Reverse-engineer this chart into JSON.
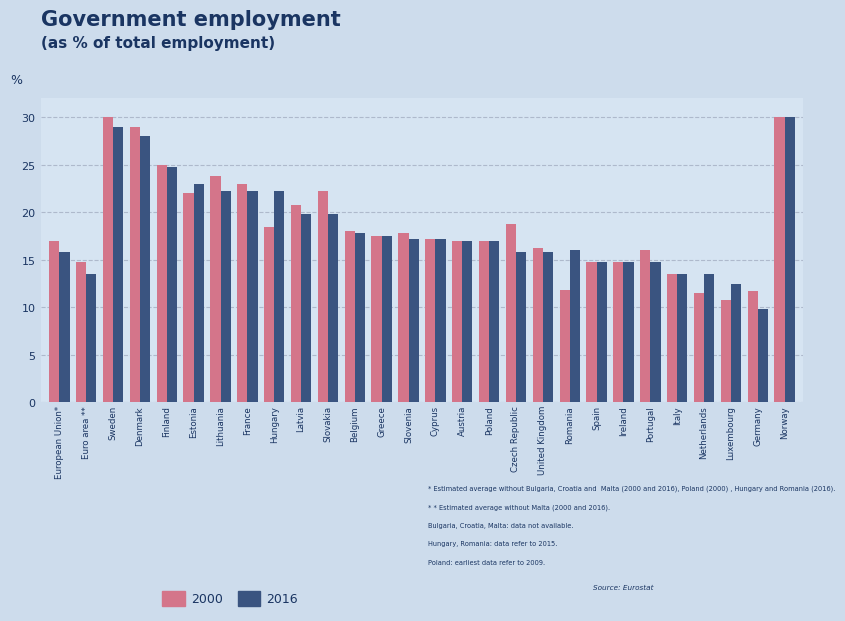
{
  "title_line1": "Government employment",
  "title_line2": "(as % of total employment)",
  "ylabel": "%",
  "background_color": "#cddcec",
  "plot_background_color": "#d6e4f2",
  "bar_color_2000": "#d4758a",
  "bar_color_2016": "#3a5480",
  "ylim": [
    0,
    32
  ],
  "yticks": [
    0,
    5,
    10,
    15,
    20,
    25,
    30
  ],
  "categories": [
    "European Union*",
    "Euro area **",
    "Sweden",
    "Denmark",
    "Finland",
    "Estonia",
    "Lithuania",
    "France",
    "Hungary",
    "Latvia",
    "Slovakia",
    "Belgium",
    "Greece",
    "Slovenia",
    "Cyprus",
    "Austria",
    "Poland",
    "Czech Republic",
    "United Kingdom",
    "Romania",
    "Spain",
    "Ireland",
    "Portugal",
    "Italy",
    "Netherlands",
    "Luxembourg",
    "Germany",
    "Norway"
  ],
  "values_2000": [
    17.0,
    14.8,
    30.0,
    29.0,
    25.0,
    22.0,
    23.8,
    23.0,
    18.5,
    20.8,
    22.2,
    18.0,
    17.5,
    17.8,
    17.2,
    17.0,
    17.0,
    18.8,
    16.2,
    11.8,
    14.8,
    14.8,
    16.0,
    13.5,
    11.5,
    10.8,
    11.7,
    30.0
  ],
  "values_2016": [
    15.8,
    13.5,
    29.0,
    28.0,
    24.8,
    23.0,
    22.2,
    22.2,
    22.2,
    19.8,
    19.8,
    17.8,
    17.5,
    17.2,
    17.2,
    17.0,
    17.0,
    15.8,
    15.8,
    16.0,
    14.8,
    14.8,
    14.8,
    13.5,
    13.5,
    12.5,
    9.8,
    30.0
  ],
  "footnote_lines": [
    "* Estimated average without Bulgaria, Croatia and  Malta (2000 and 2016), Poland (2000) , Hungary and Romania (2016).",
    "* * Estimated average without Malta (2000 and 2016).",
    "Bulgaria, Croatia, Malta: data not available.",
    "Hungary, Romania: data refer to 2015.",
    "Poland: earliest data refer to 2009."
  ],
  "source_text": "Source: Eurostat",
  "legend_2000": "2000",
  "legend_2016": "2016"
}
